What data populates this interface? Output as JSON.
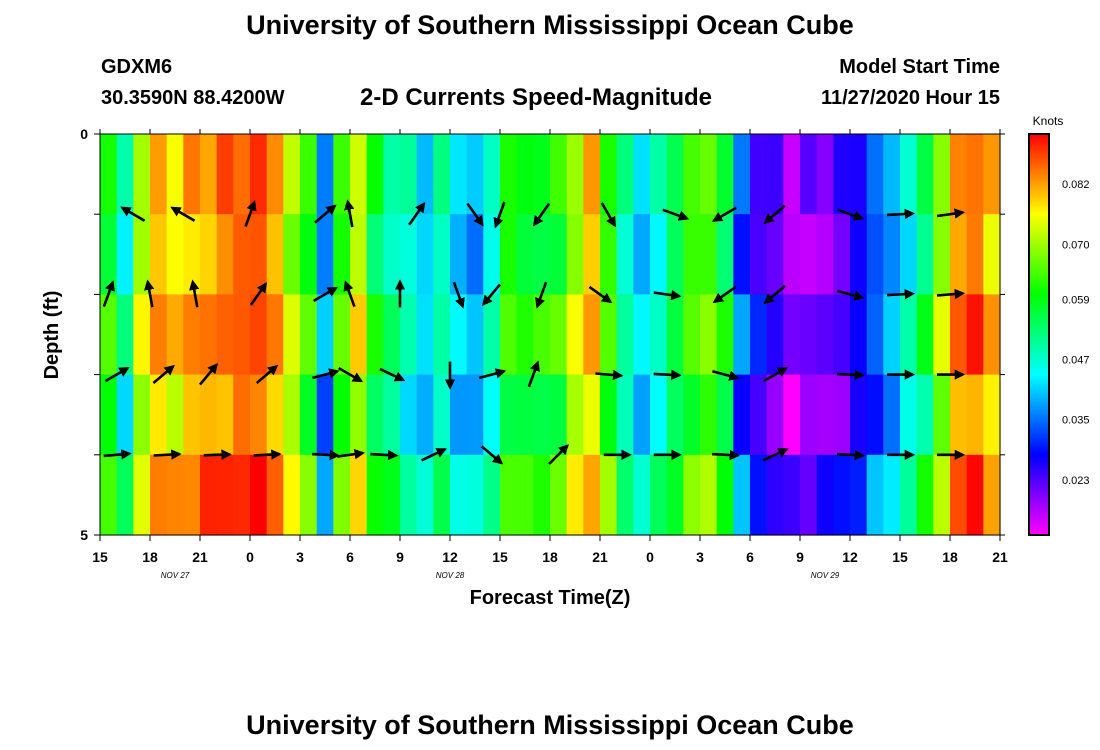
{
  "header": {
    "title": "University of Southern Mississippi Ocean Cube",
    "station": "GDXM6",
    "coords": "30.3590N 88.4200W",
    "subtitle": "2-D Currents Speed-Magnitude",
    "model_start_label": "Model Start Time",
    "model_start_value": "11/27/2020 Hour 15"
  },
  "footer": {
    "title": "University of Southern Mississippi Ocean Cube"
  },
  "chart_data": {
    "type": "heatmap",
    "title": "2-D Currents Speed-Magnitude",
    "xlabel": "Forecast Time(Z)",
    "ylabel": "Depth (ft)",
    "ylim": [
      0,
      5
    ],
    "y_tick_labels": [
      "0",
      "5"
    ],
    "x_tick_labels": [
      "15",
      "18",
      "21",
      "0",
      "3",
      "6",
      "9",
      "12",
      "15",
      "18",
      "21",
      "0",
      "3",
      "6",
      "9",
      "12",
      "15",
      "18",
      "21"
    ],
    "x_date_labels": [
      {
        "label": "NOV  27",
        "at_tick": 1.5
      },
      {
        "label": "NOV  28",
        "at_tick": 7
      },
      {
        "label": "NOV  29",
        "at_tick": 14.5
      }
    ],
    "x_range_hours": [
      0,
      54
    ],
    "depth_bins": 5,
    "colorbar": {
      "label": "Knots",
      "range": [
        0.012,
        0.092
      ],
      "ticks": [
        "0.082",
        "0.070",
        "0.059",
        "0.047",
        "0.035",
        "0.023"
      ],
      "tick_values": [
        0.082,
        0.07,
        0.059,
        0.047,
        0.035,
        0.023
      ]
    },
    "speed_profile": [
      [
        0,
        0.062
      ],
      [
        1,
        0.048
      ],
      [
        2,
        0.072
      ],
      [
        3,
        0.08
      ],
      [
        4,
        0.078
      ],
      [
        5,
        0.082
      ],
      [
        6,
        0.084
      ],
      [
        7,
        0.086
      ],
      [
        8,
        0.087
      ],
      [
        9,
        0.088
      ],
      [
        10,
        0.084
      ],
      [
        11,
        0.072
      ],
      [
        12,
        0.063
      ],
      [
        13,
        0.037
      ],
      [
        14,
        0.062
      ],
      [
        15,
        0.075
      ],
      [
        16,
        0.058
      ],
      [
        17,
        0.052
      ],
      [
        18,
        0.048
      ],
      [
        19,
        0.042
      ],
      [
        20,
        0.05
      ],
      [
        21,
        0.044
      ],
      [
        22,
        0.04
      ],
      [
        23,
        0.048
      ],
      [
        24,
        0.062
      ],
      [
        25,
        0.058
      ],
      [
        26,
        0.06
      ],
      [
        27,
        0.062
      ],
      [
        28,
        0.072
      ],
      [
        29,
        0.08
      ],
      [
        30,
        0.064
      ],
      [
        31,
        0.05
      ],
      [
        32,
        0.044
      ],
      [
        33,
        0.048
      ],
      [
        34,
        0.056
      ],
      [
        35,
        0.064
      ],
      [
        36,
        0.066
      ],
      [
        37,
        0.058
      ],
      [
        38,
        0.034
      ],
      [
        39,
        0.026
      ],
      [
        40,
        0.022
      ],
      [
        41,
        0.018
      ],
      [
        42,
        0.02
      ],
      [
        43,
        0.022
      ],
      [
        44,
        0.024
      ],
      [
        45,
        0.028
      ],
      [
        46,
        0.034
      ],
      [
        47,
        0.04
      ],
      [
        48,
        0.047
      ],
      [
        49,
        0.055
      ],
      [
        50,
        0.07
      ],
      [
        51,
        0.082
      ],
      [
        52,
        0.087
      ],
      [
        53,
        0.08
      ],
      [
        54,
        0.076
      ]
    ],
    "depth_offsets": [
      0.0,
      -0.003,
      0.002,
      -0.004,
      0.004
    ],
    "vectors": [
      {
        "hour": 2.0,
        "depth": 1.0,
        "angle_deg": 150
      },
      {
        "hour": 5.0,
        "depth": 1.0,
        "angle_deg": 150
      },
      {
        "hour": 9.0,
        "depth": 1.0,
        "angle_deg": 70
      },
      {
        "hour": 13.5,
        "depth": 1.0,
        "angle_deg": 40
      },
      {
        "hour": 15.0,
        "depth": 1.0,
        "angle_deg": 100
      },
      {
        "hour": 19.0,
        "depth": 1.0,
        "angle_deg": 55
      },
      {
        "hour": 22.5,
        "depth": 1.0,
        "angle_deg": -55
      },
      {
        "hour": 24.0,
        "depth": 1.0,
        "angle_deg": -110
      },
      {
        "hour": 26.5,
        "depth": 1.0,
        "angle_deg": -125
      },
      {
        "hour": 30.5,
        "depth": 1.0,
        "angle_deg": -60
      },
      {
        "hour": 34.5,
        "depth": 1.0,
        "angle_deg": -20
      },
      {
        "hour": 37.5,
        "depth": 1.0,
        "angle_deg": -150
      },
      {
        "hour": 40.5,
        "depth": 1.0,
        "angle_deg": -140
      },
      {
        "hour": 45.0,
        "depth": 1.0,
        "angle_deg": -20
      },
      {
        "hour": 48.0,
        "depth": 1.0,
        "angle_deg": 3
      },
      {
        "hour": 51.0,
        "depth": 1.0,
        "angle_deg": 8
      },
      {
        "hour": 0.5,
        "depth": 2.0,
        "angle_deg": 70
      },
      {
        "hour": 3.0,
        "depth": 2.0,
        "angle_deg": 100
      },
      {
        "hour": 5.7,
        "depth": 2.0,
        "angle_deg": 100
      },
      {
        "hour": 9.5,
        "depth": 2.0,
        "angle_deg": 55
      },
      {
        "hour": 13.5,
        "depth": 2.0,
        "angle_deg": 30
      },
      {
        "hour": 15.0,
        "depth": 2.0,
        "angle_deg": 110
      },
      {
        "hour": 18.0,
        "depth": 2.0,
        "angle_deg": 90
      },
      {
        "hour": 21.5,
        "depth": 2.0,
        "angle_deg": -70
      },
      {
        "hour": 23.5,
        "depth": 2.0,
        "angle_deg": -130
      },
      {
        "hour": 26.5,
        "depth": 2.0,
        "angle_deg": -110
      },
      {
        "hour": 30.0,
        "depth": 2.0,
        "angle_deg": -35
      },
      {
        "hour": 34.0,
        "depth": 2.0,
        "angle_deg": -8
      },
      {
        "hour": 37.5,
        "depth": 2.0,
        "angle_deg": -145
      },
      {
        "hour": 40.5,
        "depth": 2.0,
        "angle_deg": -140
      },
      {
        "hour": 45.0,
        "depth": 2.0,
        "angle_deg": -15
      },
      {
        "hour": 48.0,
        "depth": 2.0,
        "angle_deg": 3
      },
      {
        "hour": 51.0,
        "depth": 2.0,
        "angle_deg": 5
      },
      {
        "hour": 1.0,
        "depth": 3.0,
        "angle_deg": 30
      },
      {
        "hour": 3.8,
        "depth": 3.0,
        "angle_deg": 40
      },
      {
        "hour": 6.5,
        "depth": 3.0,
        "angle_deg": 50
      },
      {
        "hour": 10.0,
        "depth": 3.0,
        "angle_deg": 40
      },
      {
        "hour": 13.5,
        "depth": 3.0,
        "angle_deg": 15
      },
      {
        "hour": 15.0,
        "depth": 3.0,
        "angle_deg": -30
      },
      {
        "hour": 17.5,
        "depth": 3.0,
        "angle_deg": -25
      },
      {
        "hour": 21.0,
        "depth": 3.0,
        "angle_deg": -90
      },
      {
        "hour": 23.5,
        "depth": 3.0,
        "angle_deg": 15
      },
      {
        "hour": 26.0,
        "depth": 3.0,
        "angle_deg": 70
      },
      {
        "hour": 30.5,
        "depth": 3.0,
        "angle_deg": -5
      },
      {
        "hour": 34.0,
        "depth": 3.0,
        "angle_deg": -3
      },
      {
        "hour": 37.5,
        "depth": 3.0,
        "angle_deg": -15
      },
      {
        "hour": 40.5,
        "depth": 3.0,
        "angle_deg": 30
      },
      {
        "hour": 45.0,
        "depth": 3.0,
        "angle_deg": -3
      },
      {
        "hour": 48.0,
        "depth": 3.0,
        "angle_deg": 0
      },
      {
        "hour": 51.0,
        "depth": 3.0,
        "angle_deg": 0
      },
      {
        "hour": 1.0,
        "depth": 4.0,
        "angle_deg": 5
      },
      {
        "hour": 4.0,
        "depth": 4.0,
        "angle_deg": 3
      },
      {
        "hour": 7.0,
        "depth": 4.0,
        "angle_deg": 2
      },
      {
        "hour": 10.0,
        "depth": 4.0,
        "angle_deg": 3
      },
      {
        "hour": 13.5,
        "depth": 4.0,
        "angle_deg": -3
      },
      {
        "hour": 15.0,
        "depth": 4.0,
        "angle_deg": 8
      },
      {
        "hour": 17.0,
        "depth": 4.0,
        "angle_deg": -3
      },
      {
        "hour": 20.0,
        "depth": 4.0,
        "angle_deg": 25
      },
      {
        "hour": 23.5,
        "depth": 4.0,
        "angle_deg": -40
      },
      {
        "hour": 27.5,
        "depth": 4.0,
        "angle_deg": 45
      },
      {
        "hour": 31.0,
        "depth": 4.0,
        "angle_deg": 0
      },
      {
        "hour": 34.0,
        "depth": 4.0,
        "angle_deg": 0
      },
      {
        "hour": 37.5,
        "depth": 4.0,
        "angle_deg": -3
      },
      {
        "hour": 40.5,
        "depth": 4.0,
        "angle_deg": 25
      },
      {
        "hour": 45.0,
        "depth": 4.0,
        "angle_deg": -3
      },
      {
        "hour": 48.0,
        "depth": 4.0,
        "angle_deg": 0
      },
      {
        "hour": 51.0,
        "depth": 4.0,
        "angle_deg": 0
      }
    ]
  }
}
